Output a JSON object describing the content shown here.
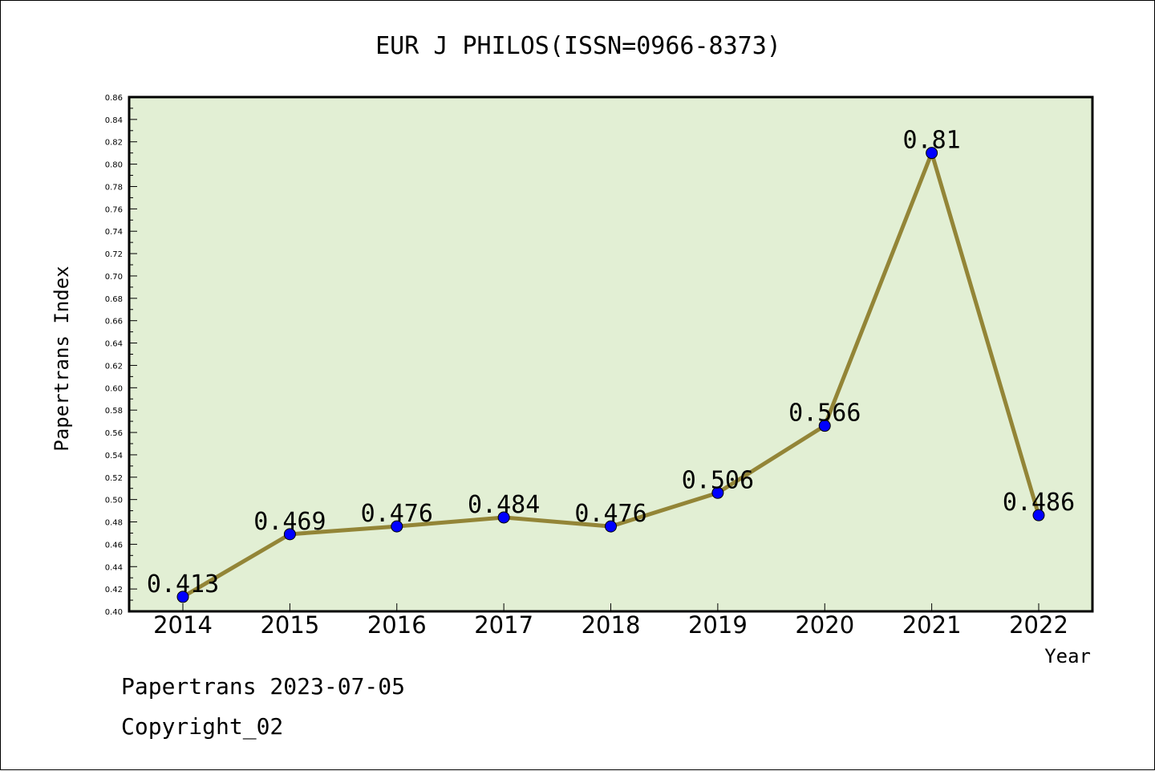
{
  "chart_data": {
    "type": "line",
    "title": "EUR J PHILOS(ISSN=0966-8373)",
    "xlabel": "Year",
    "ylabel": "Papertrans Index",
    "categories": [
      "2014",
      "2015",
      "2016",
      "2017",
      "2018",
      "2019",
      "2020",
      "2021",
      "2022"
    ],
    "values": [
      0.413,
      0.469,
      0.476,
      0.484,
      0.476,
      0.506,
      0.566,
      0.81,
      0.486
    ],
    "data_labels": [
      "0.413",
      "0.469",
      "0.476",
      "0.484",
      "0.476",
      "0.506",
      "0.566",
      "0.81",
      "0.486"
    ],
    "ylim": [
      0.4,
      0.86
    ],
    "ytick_step": 0.02,
    "yticks": [
      "0.40",
      "0.42",
      "0.44",
      "0.46",
      "0.48",
      "0.50",
      "0.52",
      "0.54",
      "0.56",
      "0.58",
      "0.60",
      "0.62",
      "0.64",
      "0.66",
      "0.68",
      "0.70",
      "0.72",
      "0.74",
      "0.76",
      "0.78",
      "0.80",
      "0.82",
      "0.84",
      "0.86"
    ],
    "grid": false,
    "plot_background": "#e2efd4",
    "line_color": "#938537",
    "marker_color": "#0000ff"
  },
  "footer": {
    "line1": "Papertrans 2023-07-05",
    "line2": "Copyright_02"
  }
}
